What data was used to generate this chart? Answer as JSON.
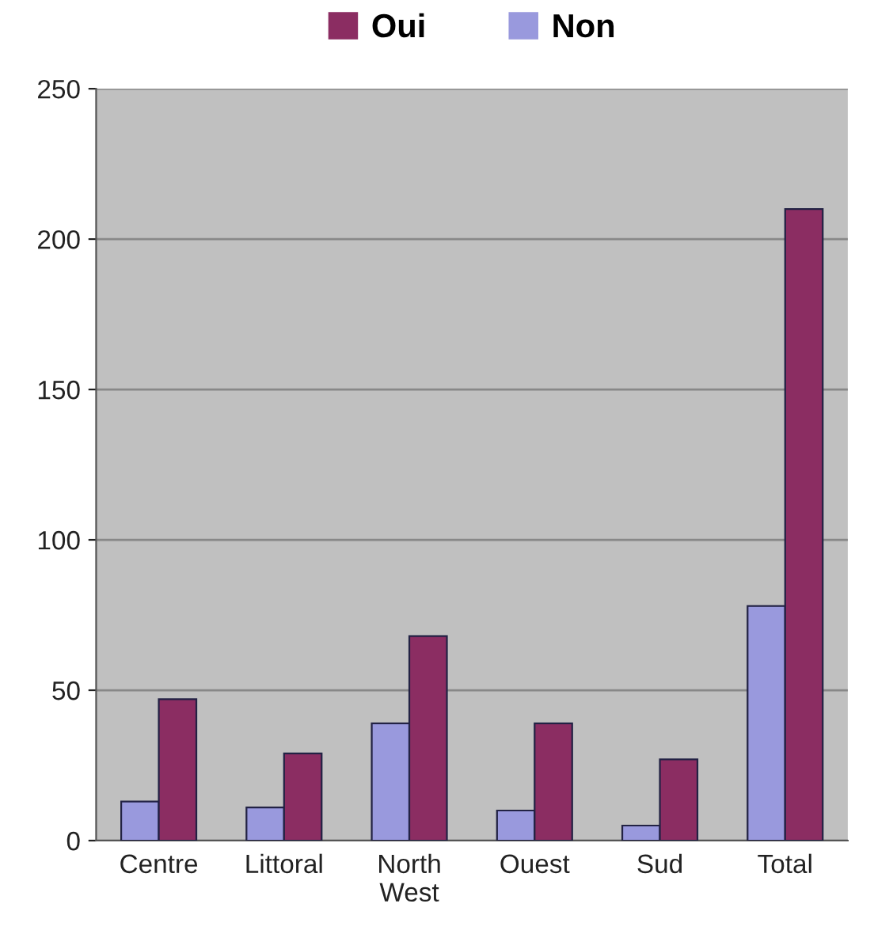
{
  "chart_data": {
    "type": "bar",
    "categories": [
      "Centre",
      "Littoral",
      "North\nWest",
      "Ouest",
      "Sud",
      "Total"
    ],
    "series": [
      {
        "name": "Non",
        "color": "#9999dd",
        "values": [
          13,
          11,
          39,
          10,
          5,
          78
        ]
      },
      {
        "name": "Oui",
        "color": "#8b2d62",
        "values": [
          47,
          29,
          68,
          39,
          27,
          210
        ]
      }
    ],
    "ylim": [
      0,
      250
    ],
    "yticks": [
      0,
      50,
      100,
      150,
      200,
      250
    ],
    "grid": "y",
    "legend": "top"
  }
}
